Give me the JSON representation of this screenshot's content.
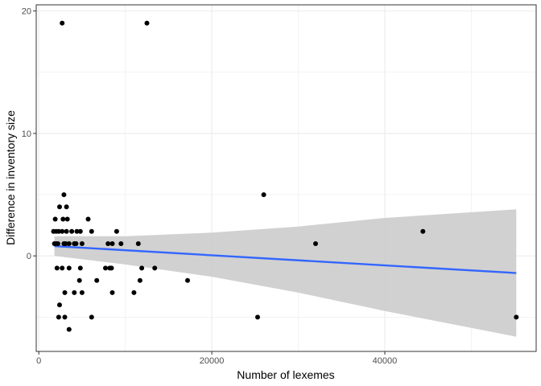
{
  "chart_data": {
    "type": "scatter",
    "title": "",
    "xlabel": "Number of lexemes",
    "ylabel": "Difference in inventory size",
    "xlim": [
      -300,
      57500
    ],
    "ylim": [
      -7.8,
      20.5
    ],
    "x_ticks": [
      0,
      20000,
      40000
    ],
    "x_tick_labels": [
      "0",
      "20000",
      "40000"
    ],
    "x_minor_ticks": [
      10000,
      30000,
      50000
    ],
    "y_ticks": [
      0,
      10,
      20
    ],
    "y_tick_labels": [
      "0",
      "10",
      "20"
    ],
    "y_minor_ticks": [
      -5,
      5,
      15
    ],
    "grid": true,
    "legend": "none",
    "colors": {
      "points": "#000000",
      "trend_line": "#3366FF",
      "confidence_band": "#cccccc",
      "gridline": "#ebebeb",
      "panel_border": "#333333"
    },
    "points": [
      {
        "x": 2700,
        "y": 19
      },
      {
        "x": 12500,
        "y": 19
      },
      {
        "x": 26000,
        "y": 5
      },
      {
        "x": 44400,
        "y": 2
      },
      {
        "x": 32000,
        "y": 1
      },
      {
        "x": 25300,
        "y": -5
      },
      {
        "x": 55200,
        "y": -5
      },
      {
        "x": 2900,
        "y": 5
      },
      {
        "x": 2400,
        "y": 4
      },
      {
        "x": 3200,
        "y": 4
      },
      {
        "x": 1900,
        "y": 3
      },
      {
        "x": 2800,
        "y": 3
      },
      {
        "x": 3300,
        "y": 3
      },
      {
        "x": 5700,
        "y": 3
      },
      {
        "x": 1700,
        "y": 2
      },
      {
        "x": 2000,
        "y": 2
      },
      {
        "x": 2300,
        "y": 2
      },
      {
        "x": 2700,
        "y": 2
      },
      {
        "x": 3200,
        "y": 2
      },
      {
        "x": 3800,
        "y": 2
      },
      {
        "x": 4400,
        "y": 2
      },
      {
        "x": 4800,
        "y": 2
      },
      {
        "x": 6100,
        "y": 2
      },
      {
        "x": 9000,
        "y": 2
      },
      {
        "x": 1800,
        "y": 1
      },
      {
        "x": 2000,
        "y": 1
      },
      {
        "x": 2200,
        "y": 1
      },
      {
        "x": 2900,
        "y": 1
      },
      {
        "x": 3100,
        "y": 1
      },
      {
        "x": 3500,
        "y": 1
      },
      {
        "x": 4100,
        "y": 1
      },
      {
        "x": 4300,
        "y": 1
      },
      {
        "x": 5000,
        "y": 1
      },
      {
        "x": 8000,
        "y": 1
      },
      {
        "x": 8500,
        "y": 1
      },
      {
        "x": 9500,
        "y": 1
      },
      {
        "x": 11500,
        "y": 1
      },
      {
        "x": 2100,
        "y": -1
      },
      {
        "x": 2700,
        "y": -1
      },
      {
        "x": 3500,
        "y": -1
      },
      {
        "x": 4800,
        "y": -1
      },
      {
        "x": 7700,
        "y": -1
      },
      {
        "x": 8200,
        "y": -1
      },
      {
        "x": 8400,
        "y": -1
      },
      {
        "x": 11900,
        "y": -1
      },
      {
        "x": 13400,
        "y": -1
      },
      {
        "x": 4700,
        "y": -2
      },
      {
        "x": 6700,
        "y": -2
      },
      {
        "x": 11700,
        "y": -2
      },
      {
        "x": 17200,
        "y": -2
      },
      {
        "x": 3000,
        "y": -3
      },
      {
        "x": 4100,
        "y": -3
      },
      {
        "x": 5000,
        "y": -3
      },
      {
        "x": 8500,
        "y": -3
      },
      {
        "x": 11000,
        "y": -3
      },
      {
        "x": 2400,
        "y": -4
      },
      {
        "x": 2300,
        "y": -5
      },
      {
        "x": 3000,
        "y": -5
      },
      {
        "x": 6100,
        "y": -5
      },
      {
        "x": 3500,
        "y": -6
      }
    ],
    "trend_line": {
      "x": [
        1800,
        55200
      ],
      "y": [
        0.8,
        -1.4
      ]
    },
    "confidence_band": {
      "x": [
        1800,
        10000,
        20000,
        30000,
        40000,
        55200
      ],
      "upper": [
        1.6,
        1.6,
        1.9,
        2.4,
        3.1,
        3.8
      ],
      "lower": [
        0.0,
        -0.7,
        -1.7,
        -3.0,
        -4.5,
        -6.6
      ]
    }
  }
}
